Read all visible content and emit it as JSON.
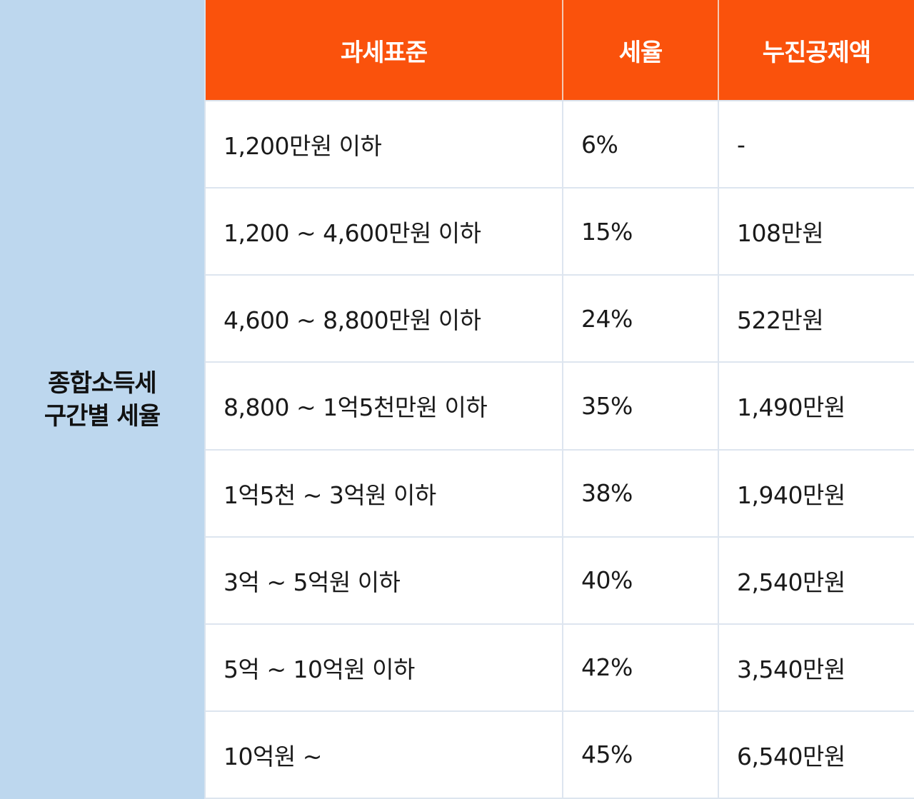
{
  "side": {
    "title_line1": "종합소득세",
    "title_line2": "구간별 세율"
  },
  "table": {
    "headers": [
      "과세표준",
      "세율",
      "누진공제액"
    ],
    "rows": [
      [
        "1,200만원 이하",
        "6%",
        "-"
      ],
      [
        "1,200 ~ 4,600만원 이하",
        "15%",
        "108만원"
      ],
      [
        "4,600 ~ 8,800만원 이하",
        "24%",
        "522만원"
      ],
      [
        "8,800 ~ 1억5천만원 이하",
        "35%",
        "1,490만원"
      ],
      [
        "1억5천 ~ 3억원 이하",
        "38%",
        "1,940만원"
      ],
      [
        "3억 ~ 5억원 이하",
        "40%",
        "2,540만원"
      ],
      [
        "5억 ~ 10억원 이하",
        "42%",
        "3,540만원"
      ],
      [
        "10억원 ~",
        "45%",
        "6,540만원"
      ]
    ]
  },
  "colors": {
    "header_bg": "#fa520c",
    "side_bg": "#bdd7ee"
  }
}
